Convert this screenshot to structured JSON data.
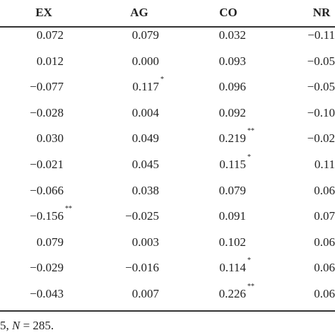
{
  "table": {
    "header": [
      "EX",
      "AG",
      "CO",
      "NR"
    ],
    "rows": [
      [
        {
          "value": "0.072"
        },
        {
          "value": "0.079"
        },
        {
          "value": "0.032"
        },
        {
          "value": "−0.11"
        }
      ],
      [
        {
          "value": "0.012"
        },
        {
          "value": "0.000"
        },
        {
          "value": "0.093"
        },
        {
          "value": "−0.05"
        }
      ],
      [
        {
          "value": "−0.077"
        },
        {
          "value": "0.117",
          "sup": "*"
        },
        {
          "value": "0.096"
        },
        {
          "value": "−0.05"
        }
      ],
      [
        {
          "value": "−0.028"
        },
        {
          "value": "0.004"
        },
        {
          "value": "0.092"
        },
        {
          "value": "−0.10"
        }
      ],
      [
        {
          "value": "0.030"
        },
        {
          "value": "0.049"
        },
        {
          "value": "0.219",
          "sup": "**"
        },
        {
          "value": "−0.02"
        }
      ],
      [
        {
          "value": "−0.021"
        },
        {
          "value": "0.045"
        },
        {
          "value": "0.115",
          "sup": "*"
        },
        {
          "value": "0.11"
        }
      ],
      [
        {
          "value": "−0.066"
        },
        {
          "value": "0.038"
        },
        {
          "value": "0.079"
        },
        {
          "value": "0.06"
        }
      ],
      [
        {
          "value": "−0.156",
          "sup": "**"
        },
        {
          "value": "−0.025"
        },
        {
          "value": "0.091"
        },
        {
          "value": "0.07"
        }
      ],
      [
        {
          "value": "0.079"
        },
        {
          "value": "0.003"
        },
        {
          "value": "0.102"
        },
        {
          "value": "0.06"
        }
      ],
      [
        {
          "value": "−0.029"
        },
        {
          "value": "−0.016"
        },
        {
          "value": "0.114",
          "sup": "*"
        },
        {
          "value": "0.06"
        }
      ],
      [
        {
          "value": "−0.043"
        },
        {
          "value": "0.007"
        },
        {
          "value": "0.226",
          "sup": "**"
        },
        {
          "value": "0.06"
        }
      ]
    ]
  },
  "footer": {
    "pre": "5,",
    "var": "N",
    "post": "= 285."
  }
}
